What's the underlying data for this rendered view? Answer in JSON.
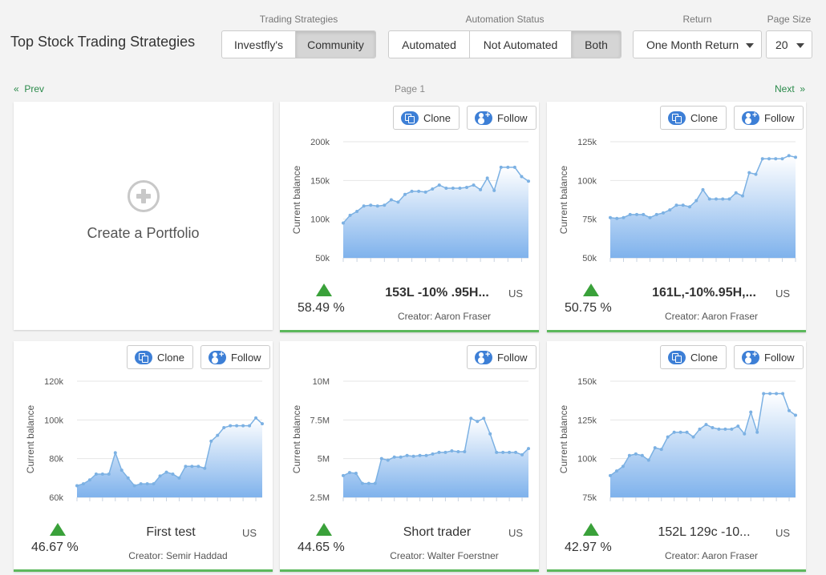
{
  "header": {
    "title": "Top Stock Trading Strategies",
    "trading_label": "Trading Strategies",
    "trading_options": [
      "Investfly's",
      "Community"
    ],
    "automation_label": "Automation Status",
    "automation_options": [
      "Automated",
      "Not Automated",
      "Both"
    ],
    "return_label": "Return",
    "return_value": "One Month Return",
    "pagesize_label": "Page Size",
    "pagesize_value": "20"
  },
  "pager": {
    "prev": "Prev",
    "page": "Page 1",
    "next": "Next"
  },
  "create": {
    "label": "Create a Portfolio"
  },
  "common": {
    "clone": "Clone",
    "follow": "Follow",
    "ylabel": "Current balance"
  },
  "cards": [
    {
      "name": "153L -10% .95H...",
      "return": "58.49 %",
      "region": "US",
      "creator": "Creator: Aaron Fraser",
      "clone": true,
      "chart_data": {
        "type": "area",
        "ylabel": "Current balance",
        "ylim": [
          50000,
          200000
        ],
        "yticks": [
          "50k",
          "100k",
          "150k",
          "200k"
        ],
        "values": [
          95000,
          105000,
          110000,
          117000,
          118000,
          117000,
          118000,
          125000,
          122000,
          132000,
          136000,
          136000,
          135000,
          139000,
          144000,
          140000,
          140000,
          140000,
          141000,
          144000,
          138000,
          153000,
          137000,
          167000,
          167000,
          167000,
          155000,
          149000
        ]
      }
    },
    {
      "name": "161L,-10%.95H,...",
      "return": "50.75 %",
      "region": "US",
      "creator": "Creator: Aaron Fraser",
      "clone": true,
      "chart_data": {
        "type": "area",
        "ylabel": "Current balance",
        "ylim": [
          50000,
          125000
        ],
        "yticks": [
          "50k",
          "75k",
          "100k",
          "125k"
        ],
        "values": [
          76000,
          75500,
          76000,
          78000,
          78000,
          78000,
          76000,
          78000,
          79000,
          81000,
          84000,
          84000,
          83000,
          87000,
          94000,
          88000,
          88000,
          88000,
          88000,
          92000,
          90000,
          105000,
          104000,
          114000,
          114000,
          114000,
          114000,
          116000,
          115000
        ]
      }
    },
    {
      "name": "First test",
      "return": "46.67 %",
      "region": "US",
      "creator": "Creator: Semir Haddad",
      "clone": true,
      "chart_data": {
        "type": "area",
        "ylabel": "Current balance",
        "ylim": [
          60000,
          120000
        ],
        "yticks": [
          "60k",
          "80k",
          "100k",
          "120k"
        ],
        "values": [
          66000,
          67000,
          69000,
          72000,
          72000,
          72000,
          83000,
          74000,
          70000,
          66000,
          67000,
          67000,
          67000,
          71000,
          73000,
          72000,
          70000,
          76000,
          76000,
          76000,
          75000,
          89000,
          92000,
          96000,
          97000,
          97000,
          97000,
          97000,
          101000,
          98000
        ]
      }
    },
    {
      "name": "Short trader",
      "return": "44.65 %",
      "region": "US",
      "creator": "Creator: Walter Foerstner",
      "clone": false,
      "chart_data": {
        "type": "area",
        "ylabel": "Current balance",
        "ylim": [
          2500000,
          10000000
        ],
        "yticks": [
          "2.5M",
          "5M",
          "7.5M",
          "10M"
        ],
        "values": [
          3900000,
          4100000,
          4050000,
          3400000,
          3400000,
          3400000,
          5000000,
          4900000,
          5100000,
          5100000,
          5200000,
          5150000,
          5200000,
          5200000,
          5300000,
          5400000,
          5400000,
          5500000,
          5450000,
          5450000,
          7600000,
          7400000,
          7600000,
          6600000,
          5400000,
          5400000,
          5400000,
          5400000,
          5250000,
          5650000
        ]
      }
    },
    {
      "name": "152L 129c -10...",
      "return": "42.97 %",
      "region": "US",
      "creator": "Creator: Aaron Fraser",
      "clone": true,
      "chart_data": {
        "type": "area",
        "ylabel": "Current balance",
        "ylim": [
          75000,
          150000
        ],
        "yticks": [
          "75k",
          "100k",
          "125k",
          "150k"
        ],
        "values": [
          89000,
          92000,
          95000,
          102000,
          103000,
          102000,
          99000,
          107000,
          106000,
          114000,
          117000,
          117000,
          117000,
          114000,
          119000,
          122000,
          120000,
          119000,
          119000,
          119000,
          121000,
          116000,
          130000,
          117000,
          142000,
          142000,
          142000,
          142000,
          131000,
          128000
        ]
      }
    }
  ]
}
